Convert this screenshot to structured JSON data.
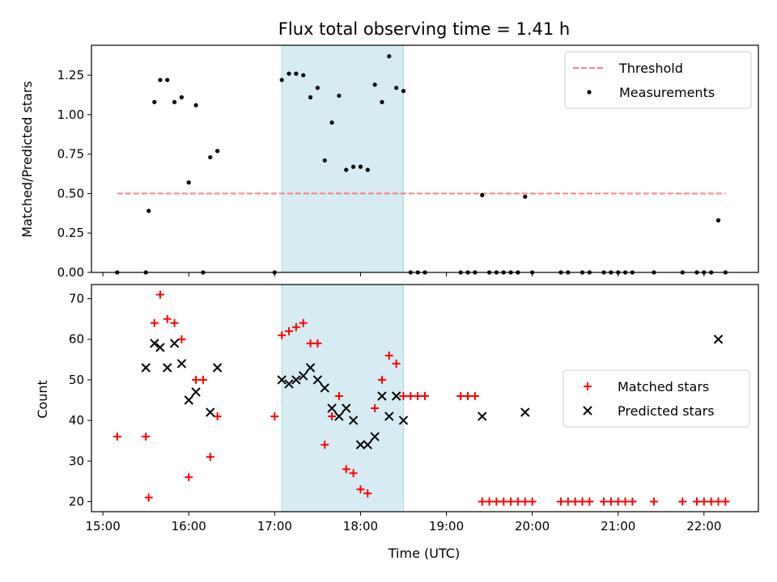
{
  "chart_data": [
    {
      "type": "scatter",
      "title": "Flux total observing time = 1.41 h",
      "xlabel": "",
      "ylabel": "Matched/Predicted stars",
      "xlim": [
        "14:52",
        "22:38"
      ],
      "ylim": [
        0,
        1.44
      ],
      "xticks": [
        "15:00",
        "16:00",
        "17:00",
        "18:00",
        "19:00",
        "20:00",
        "21:00",
        "22:00"
      ],
      "yticks": [
        "0.00",
        "0.25",
        "0.50",
        "0.75",
        "1.00",
        "1.25"
      ],
      "legend": {
        "position": "top-right",
        "entries": [
          "Threshold",
          "Measurements"
        ]
      },
      "highlight_span": [
        "17:05",
        "18:30"
      ],
      "threshold": {
        "name": "Threshold",
        "value": 0.5,
        "x_range": [
          "15:10",
          "22:15"
        ],
        "color": "#ff7f7f"
      },
      "series": [
        {
          "name": "Measurements",
          "color": "#000000",
          "points": [
            [
              "15:10",
              0
            ],
            [
              "15:30",
              0
            ],
            [
              "15:32",
              0.39
            ],
            [
              "15:36",
              1.08
            ],
            [
              "15:40",
              1.22
            ],
            [
              "15:45",
              1.22
            ],
            [
              "15:50",
              1.08
            ],
            [
              "15:55",
              1.11
            ],
            [
              "16:00",
              0.57
            ],
            [
              "16:05",
              1.06
            ],
            [
              "16:10",
              0
            ],
            [
              "16:15",
              0.73
            ],
            [
              "16:20",
              0.77
            ],
            [
              "17:00",
              0
            ],
            [
              "17:05",
              1.22
            ],
            [
              "17:10",
              1.26
            ],
            [
              "17:15",
              1.26
            ],
            [
              "17:20",
              1.25
            ],
            [
              "17:25",
              1.11
            ],
            [
              "17:30",
              1.17
            ],
            [
              "17:35",
              0.71
            ],
            [
              "17:40",
              0.95
            ],
            [
              "17:45",
              1.12
            ],
            [
              "17:50",
              0.65
            ],
            [
              "17:55",
              0.67
            ],
            [
              "18:00",
              0.67
            ],
            [
              "18:05",
              0.65
            ],
            [
              "18:10",
              1.19
            ],
            [
              "18:15",
              1.08
            ],
            [
              "18:20",
              1.37
            ],
            [
              "18:25",
              1.17
            ],
            [
              "18:30",
              1.15
            ],
            [
              "18:35",
              0
            ],
            [
              "18:40",
              0
            ],
            [
              "18:45",
              0
            ],
            [
              "19:10",
              0
            ],
            [
              "19:15",
              0
            ],
            [
              "19:20",
              0
            ],
            [
              "19:25",
              0.49
            ],
            [
              "19:30",
              0
            ],
            [
              "19:35",
              0
            ],
            [
              "19:40",
              0
            ],
            [
              "19:45",
              0
            ],
            [
              "19:50",
              0
            ],
            [
              "19:55",
              0.48
            ],
            [
              "20:00",
              0
            ],
            [
              "20:20",
              0
            ],
            [
              "20:25",
              0
            ],
            [
              "20:35",
              0
            ],
            [
              "20:40",
              0
            ],
            [
              "20:50",
              0
            ],
            [
              "20:55",
              0
            ],
            [
              "21:00",
              0
            ],
            [
              "21:05",
              0
            ],
            [
              "21:10",
              0
            ],
            [
              "21:25",
              0
            ],
            [
              "21:45",
              0
            ],
            [
              "21:55",
              0
            ],
            [
              "22:00",
              0
            ],
            [
              "22:05",
              0
            ],
            [
              "22:10",
              0.33
            ],
            [
              "22:15",
              0
            ]
          ]
        }
      ]
    },
    {
      "type": "scatter",
      "title": "",
      "xlabel": "Time (UTC)",
      "ylabel": "Count",
      "xlim": [
        "14:52",
        "22:38"
      ],
      "ylim": [
        17.5,
        73.5
      ],
      "xticks": [
        "15:00",
        "16:00",
        "17:00",
        "18:00",
        "19:00",
        "20:00",
        "21:00",
        "22:00"
      ],
      "yticks": [
        "20",
        "30",
        "40",
        "50",
        "60",
        "70"
      ],
      "legend": {
        "position": "center-right",
        "entries": [
          "Matched stars",
          "Predicted stars"
        ]
      },
      "highlight_span": [
        "17:05",
        "18:30"
      ],
      "series": [
        {
          "name": "Matched stars",
          "marker": "plus",
          "color": "#ff0000",
          "points": [
            [
              "15:10",
              36
            ],
            [
              "15:30",
              36
            ],
            [
              "15:32",
              21
            ],
            [
              "15:36",
              64
            ],
            [
              "15:40",
              71
            ],
            [
              "15:45",
              65
            ],
            [
              "15:50",
              64
            ],
            [
              "15:55",
              60
            ],
            [
              "16:00",
              26
            ],
            [
              "16:05",
              50
            ],
            [
              "16:10",
              50
            ],
            [
              "16:15",
              31
            ],
            [
              "16:20",
              41
            ],
            [
              "17:00",
              41
            ],
            [
              "17:05",
              61
            ],
            [
              "17:10",
              62
            ],
            [
              "17:15",
              63
            ],
            [
              "17:20",
              64
            ],
            [
              "17:25",
              59
            ],
            [
              "17:30",
              59
            ],
            [
              "17:35",
              34
            ],
            [
              "17:40",
              41
            ],
            [
              "17:45",
              46
            ],
            [
              "17:50",
              28
            ],
            [
              "17:55",
              27
            ],
            [
              "18:00",
              23
            ],
            [
              "18:05",
              22
            ],
            [
              "18:10",
              43
            ],
            [
              "18:15",
              50
            ],
            [
              "18:20",
              56
            ],
            [
              "18:25",
              54
            ],
            [
              "18:30",
              46
            ],
            [
              "18:35",
              46
            ],
            [
              "18:40",
              46
            ],
            [
              "18:45",
              46
            ],
            [
              "19:10",
              46
            ],
            [
              "19:15",
              46
            ],
            [
              "19:20",
              46
            ],
            [
              "19:25",
              20
            ],
            [
              "19:30",
              20
            ],
            [
              "19:35",
              20
            ],
            [
              "19:40",
              20
            ],
            [
              "19:45",
              20
            ],
            [
              "19:50",
              20
            ],
            [
              "19:55",
              20
            ],
            [
              "20:00",
              20
            ],
            [
              "20:20",
              20
            ],
            [
              "20:25",
              20
            ],
            [
              "20:30",
              20
            ],
            [
              "20:35",
              20
            ],
            [
              "20:40",
              20
            ],
            [
              "20:50",
              20
            ],
            [
              "20:55",
              20
            ],
            [
              "21:00",
              20
            ],
            [
              "21:05",
              20
            ],
            [
              "21:10",
              20
            ],
            [
              "21:25",
              20
            ],
            [
              "21:45",
              20
            ],
            [
              "21:55",
              20
            ],
            [
              "22:00",
              20
            ],
            [
              "22:05",
              20
            ],
            [
              "22:10",
              20
            ],
            [
              "22:15",
              20
            ]
          ]
        },
        {
          "name": "Predicted stars",
          "marker": "x",
          "color": "#000000",
          "points": [
            [
              "15:30",
              53
            ],
            [
              "15:36",
              59
            ],
            [
              "15:40",
              58
            ],
            [
              "15:45",
              53
            ],
            [
              "15:50",
              59
            ],
            [
              "15:55",
              54
            ],
            [
              "16:00",
              45
            ],
            [
              "16:05",
              47
            ],
            [
              "16:15",
              42
            ],
            [
              "16:20",
              53
            ],
            [
              "17:05",
              50
            ],
            [
              "17:10",
              49
            ],
            [
              "17:15",
              50
            ],
            [
              "17:20",
              51
            ],
            [
              "17:25",
              53
            ],
            [
              "17:30",
              50
            ],
            [
              "17:35",
              48
            ],
            [
              "17:40",
              43
            ],
            [
              "17:45",
              41
            ],
            [
              "17:50",
              43
            ],
            [
              "17:55",
              40
            ],
            [
              "18:00",
              34
            ],
            [
              "18:05",
              34
            ],
            [
              "18:10",
              36
            ],
            [
              "18:15",
              46
            ],
            [
              "18:20",
              41
            ],
            [
              "18:25",
              46
            ],
            [
              "18:30",
              40
            ],
            [
              "19:25",
              41
            ],
            [
              "19:55",
              42
            ],
            [
              "22:10",
              60
            ]
          ]
        }
      ]
    }
  ]
}
